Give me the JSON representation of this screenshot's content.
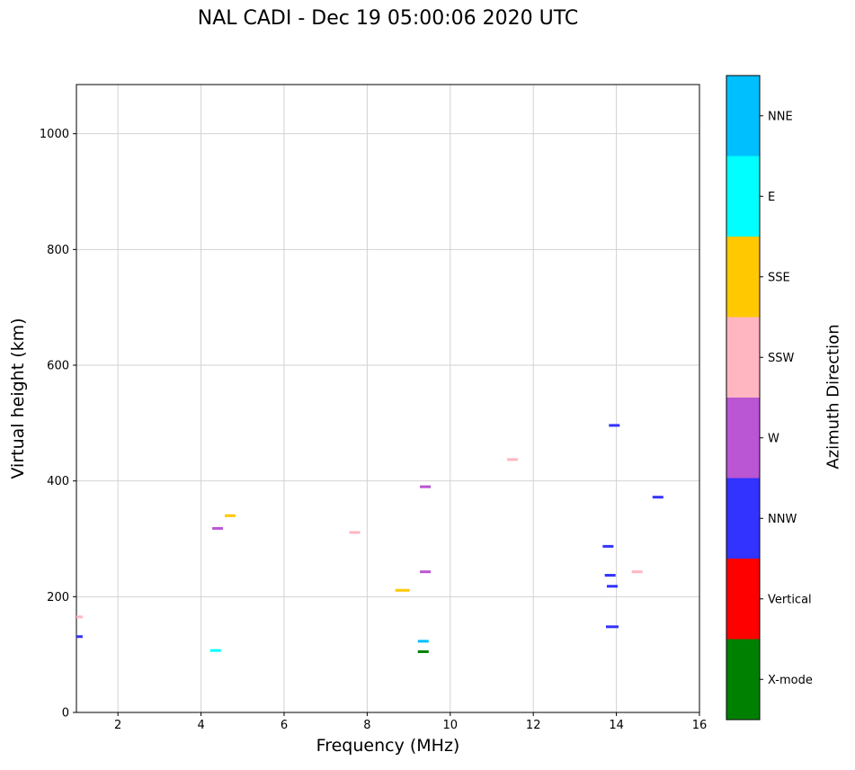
{
  "chart_data": {
    "type": "scatter",
    "title": "NAL CADI - Dec 19 05:00:06 2020 UTC",
    "xlabel": "Frequency (MHz)",
    "ylabel": "Virtual height (km)",
    "xlim": [
      1,
      16
    ],
    "ylim": [
      0,
      1085
    ],
    "xticks": [
      2,
      4,
      6,
      8,
      10,
      12,
      14,
      16
    ],
    "yticks": [
      0,
      200,
      400,
      600,
      800,
      1000
    ],
    "grid": true,
    "marker": "horizontal-dash",
    "legend_position": "none",
    "colorbar": {
      "label": "Azimuth Direction",
      "position": "right",
      "categories": [
        {
          "name": "NNE",
          "color": "#00BFFF"
        },
        {
          "name": "E",
          "color": "#00FFFF"
        },
        {
          "name": "SSE",
          "color": "#FFC800"
        },
        {
          "name": "SSW",
          "color": "#FFB6C1"
        },
        {
          "name": "W",
          "color": "#BA55D3"
        },
        {
          "name": "NNW",
          "color": "#3333FF"
        },
        {
          "name": "Vertical",
          "color": "#FF0000"
        },
        {
          "name": "X-mode",
          "color": "#008000"
        }
      ]
    },
    "series": [
      {
        "name": "NNE",
        "points": [
          [
            9.35,
            123
          ]
        ]
      },
      {
        "name": "E",
        "points": [
          [
            4.35,
            107
          ]
        ]
      },
      {
        "name": "SSE",
        "points": [
          [
            4.7,
            340
          ],
          [
            8.85,
            211,
            16
          ]
        ]
      },
      {
        "name": "SSW",
        "points": [
          [
            1.02,
            165
          ],
          [
            7.7,
            311
          ],
          [
            11.5,
            437
          ],
          [
            14.5,
            243
          ]
        ]
      },
      {
        "name": "W",
        "points": [
          [
            4.4,
            318
          ],
          [
            9.4,
            390
          ],
          [
            9.4,
            243
          ]
        ]
      },
      {
        "name": "NNW",
        "points": [
          [
            1.02,
            131
          ],
          [
            13.9,
            148,
            14
          ],
          [
            13.9,
            218
          ],
          [
            13.85,
            237
          ],
          [
            13.8,
            287
          ],
          [
            13.95,
            496
          ],
          [
            15.0,
            372
          ]
        ]
      },
      {
        "name": "Vertical",
        "points": []
      },
      {
        "name": "X-mode",
        "points": [
          [
            9.35,
            105
          ]
        ]
      }
    ]
  }
}
